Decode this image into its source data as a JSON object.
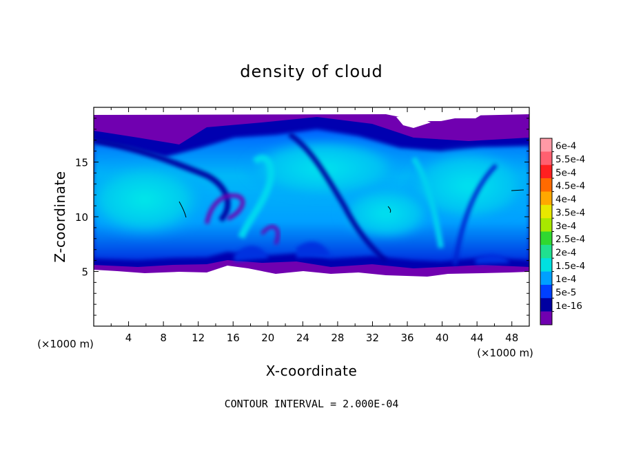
{
  "chart_data": {
    "type": "heatmap",
    "title": "density of cloud",
    "xlabel": "X-coordinate",
    "ylabel": "Z-coordinate",
    "x_unit": "(×1000 m)",
    "y_unit": "(×1000 m)",
    "xlim": [
      0,
      50
    ],
    "ylim": [
      0,
      20
    ],
    "x_ticks": [
      4,
      8,
      12,
      16,
      20,
      24,
      28,
      32,
      36,
      40,
      44,
      48
    ],
    "y_ticks": [
      5,
      10,
      15
    ],
    "contour_note": "CONTOUR INTERVAL = 2.000E-04",
    "colorbar": {
      "labels": [
        "6e-4",
        "5.5e-4",
        "5e-4",
        "4.5e-4",
        "4e-4",
        "3.5e-4",
        "3e-4",
        "2.5e-4",
        "2e-4",
        "1.5e-4",
        "1e-4",
        "5e-5",
        "1e-16"
      ],
      "colors": [
        "#ff9aa6",
        "#ff6070",
        "#ff2020",
        "#ff6a00",
        "#ffa800",
        "#e8e800",
        "#a8e800",
        "#30d830",
        "#20e090",
        "#00e0e0",
        "#00a0ff",
        "#0040ff",
        "#0000a0",
        "#7000b0"
      ]
    },
    "cloud_layer": {
      "z_bottom": 5,
      "z_top": 19.5,
      "dominant_level": "1.5e-4"
    }
  }
}
